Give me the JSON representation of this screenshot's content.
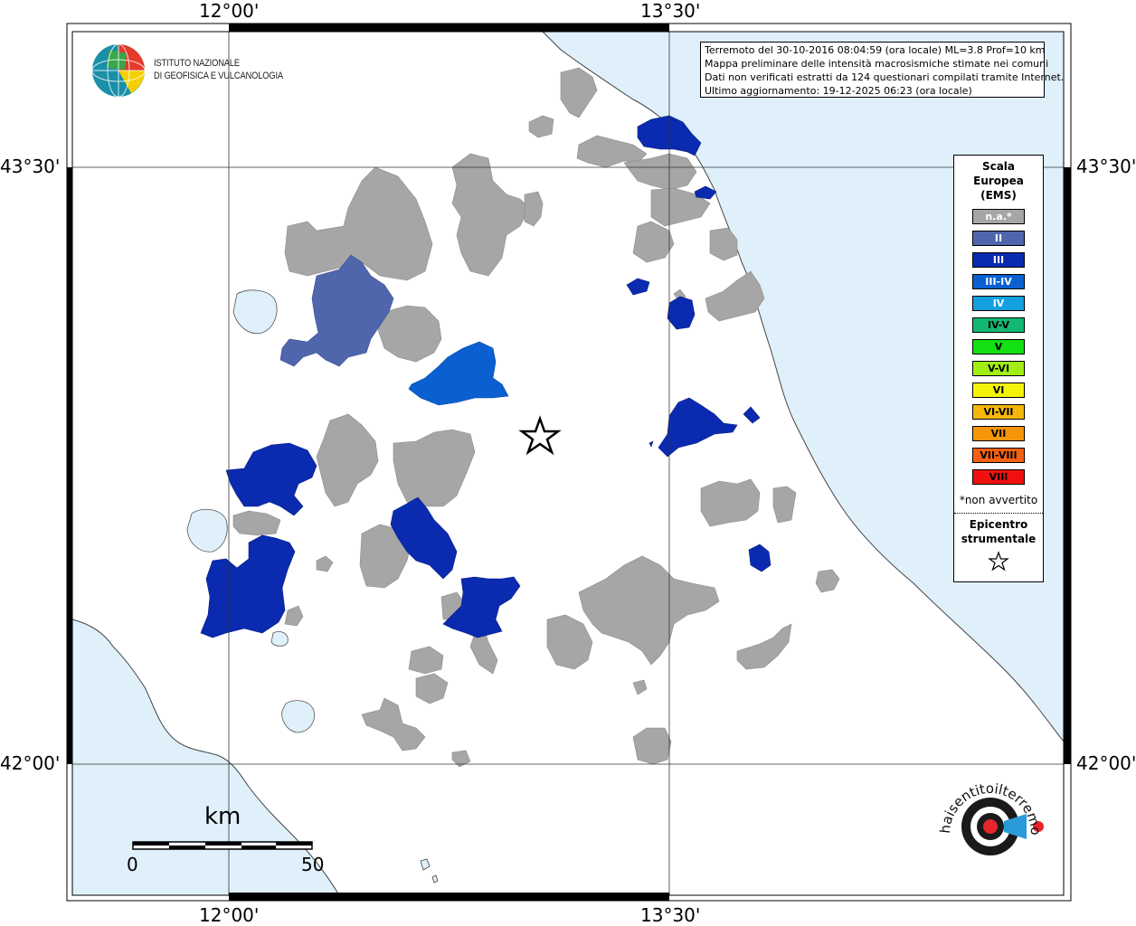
{
  "header": {
    "lines": [
      "Terremoto del 30-10-2016 08:04:59 (ora locale) ML=3.8 Prof=10 km",
      "Mappa preliminare delle intensità macrosismiche stimate nei comuni",
      "Dati non verificati estratti da 124 questionari compilati tramite Internet.",
      "Ultimo aggiornamento: 19-12-2025 06:23 (ora locale)"
    ]
  },
  "axes": {
    "lon_labels": [
      "12°00'",
      "13°30'"
    ],
    "lat_labels": [
      "43°30'",
      "42°00'"
    ]
  },
  "logo": {
    "line1": "ISTITUTO NAZIONALE",
    "line2": "DI GEOFISICA E VULCANOLOGIA"
  },
  "legend": {
    "title": [
      "Scala",
      "Europea",
      "(EMS)"
    ],
    "items": [
      {
        "label": "n.a.*",
        "color": "#a6a6a6",
        "text": "#ffffff"
      },
      {
        "label": "II",
        "color": "#4f66ad",
        "text": "#ffffff"
      },
      {
        "label": "III",
        "color": "#0a2ab0",
        "text": "#ffffff"
      },
      {
        "label": "III-IV",
        "color": "#0a60d0",
        "text": "#ffffff"
      },
      {
        "label": "IV",
        "color": "#12a0e0",
        "text": "#ffffff"
      },
      {
        "label": "IV-V",
        "color": "#12b872",
        "text": "#000000"
      },
      {
        "label": "V",
        "color": "#12e012",
        "text": "#000000"
      },
      {
        "label": "V-VI",
        "color": "#a0ee12",
        "text": "#000000"
      },
      {
        "label": "VI",
        "color": "#f5f20a",
        "text": "#000000"
      },
      {
        "label": "VI-VII",
        "color": "#f5b80a",
        "text": "#000000"
      },
      {
        "label": "VII",
        "color": "#f5960a",
        "text": "#000000"
      },
      {
        "label": "VII-VIII",
        "color": "#f56010",
        "text": "#000000"
      },
      {
        "label": "VIII",
        "color": "#f01010",
        "text": "#000000"
      }
    ],
    "note": "*non avvertito",
    "epicenter_line1": "Epicentro",
    "epicenter_line2": "strumentale"
  },
  "scalebar": {
    "unit": "km",
    "min": "0",
    "max": "50"
  },
  "colors": {
    "sea": "#dff0fb",
    "na": "#a6a6a6",
    "II": "#4f66ad",
    "III": "#0a2ab0",
    "III-IV": "#0a60d0"
  },
  "watermark": "haisentitoilterremoto.it  www."
}
